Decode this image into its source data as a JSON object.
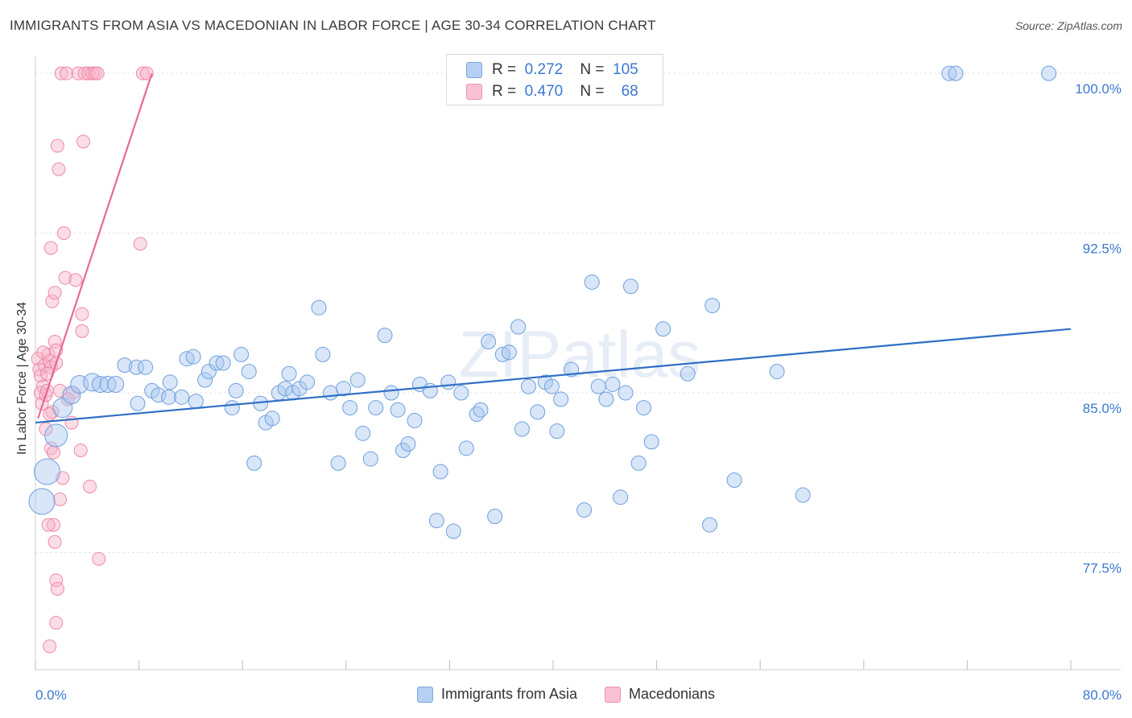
{
  "title": "IMMIGRANTS FROM ASIA VS MACEDONIAN IN LABOR FORCE | AGE 30-34 CORRELATION CHART",
  "source": "Source: ZipAtlas.com",
  "watermark": "ZIPatlas",
  "legend_stats": [
    {
      "r_label": "R =",
      "r_value": "0.272",
      "n_label": "N =",
      "n_value": "105"
    },
    {
      "r_label": "R =",
      "r_value": "0.470",
      "n_label": "N =",
      "n_value": "68"
    }
  ],
  "chart_data": {
    "type": "scatter",
    "title": "IMMIGRANTS FROM ASIA VS MACEDONIAN IN LABOR FORCE | AGE 30-34 CORRELATION CHART",
    "xlabel": "",
    "ylabel": "In Labor Force | Age 30-34",
    "xlim": [
      0,
      80
    ],
    "ylim": [
      72,
      100.8
    ],
    "x_tick_labels": [
      "0.0%",
      "80.0%"
    ],
    "y_ticks": [
      77.5,
      85.0,
      92.5,
      100.0
    ],
    "y_tick_labels": [
      "77.5%",
      "85.0%",
      "92.5%",
      "100.0%"
    ],
    "grid": true,
    "legend_position": "top-center",
    "series": [
      {
        "name": "Immigrants from Asia",
        "color": "#a9c8f0",
        "edge_color": "#6f9fdc",
        "trend_color": "#2f6fc6",
        "trend": {
          "x": [
            0,
            80
          ],
          "y": [
            83.6,
            88.0
          ]
        },
        "points": [
          [
            0.5,
            79.9,
            16
          ],
          [
            0.9,
            81.3,
            16
          ],
          [
            1.6,
            83.0,
            14
          ],
          [
            2.1,
            84.3,
            12
          ],
          [
            2.8,
            84.9,
            11
          ],
          [
            3.4,
            85.4,
            11
          ],
          [
            4.4,
            85.5,
            11
          ],
          [
            5.0,
            85.4,
            10
          ],
          [
            5.6,
            85.4,
            10
          ],
          [
            6.2,
            85.4,
            10
          ],
          [
            6.9,
            86.3,
            9
          ],
          [
            7.8,
            86.2,
            9
          ],
          [
            8.5,
            86.2,
            9
          ],
          [
            7.9,
            84.5,
            9
          ],
          [
            9.0,
            85.1,
            9
          ],
          [
            9.5,
            84.9,
            9
          ],
          [
            10.3,
            84.8,
            9
          ],
          [
            10.4,
            85.5,
            9
          ],
          [
            11.3,
            84.8,
            9
          ],
          [
            11.7,
            86.6,
            9
          ],
          [
            12.2,
            86.7,
            9
          ],
          [
            12.4,
            84.6,
            9
          ],
          [
            13.1,
            85.6,
            9
          ],
          [
            13.4,
            86.0,
            9
          ],
          [
            14.0,
            86.4,
            9
          ],
          [
            14.5,
            86.4,
            9
          ],
          [
            15.2,
            84.3,
            9
          ],
          [
            15.5,
            85.1,
            9
          ],
          [
            15.9,
            86.8,
            9
          ],
          [
            16.5,
            86.0,
            9
          ],
          [
            16.9,
            81.7,
            9
          ],
          [
            17.4,
            84.5,
            9
          ],
          [
            17.8,
            83.6,
            9
          ],
          [
            18.3,
            83.8,
            9
          ],
          [
            18.8,
            85.0,
            9
          ],
          [
            19.3,
            85.2,
            9
          ],
          [
            19.6,
            85.9,
            9
          ],
          [
            19.9,
            85.0,
            9
          ],
          [
            20.4,
            85.2,
            9
          ],
          [
            21.0,
            85.5,
            9
          ],
          [
            21.9,
            89.0,
            9
          ],
          [
            22.2,
            86.8,
            9
          ],
          [
            22.8,
            85.0,
            9
          ],
          [
            23.4,
            81.7,
            9
          ],
          [
            23.8,
            85.2,
            9
          ],
          [
            24.3,
            84.3,
            9
          ],
          [
            24.9,
            85.6,
            9
          ],
          [
            25.3,
            83.1,
            9
          ],
          [
            25.9,
            81.9,
            9
          ],
          [
            26.3,
            84.3,
            9
          ],
          [
            27.0,
            87.7,
            9
          ],
          [
            27.5,
            85.0,
            9
          ],
          [
            28.0,
            84.2,
            9
          ],
          [
            28.4,
            82.3,
            9
          ],
          [
            28.8,
            82.6,
            9
          ],
          [
            29.3,
            83.7,
            9
          ],
          [
            29.7,
            85.4,
            9
          ],
          [
            30.5,
            85.1,
            9
          ],
          [
            31.3,
            81.3,
            9
          ],
          [
            31.9,
            85.5,
            9
          ],
          [
            31.0,
            79.0,
            9
          ],
          [
            32.3,
            78.5,
            9
          ],
          [
            32.9,
            85.0,
            9
          ],
          [
            33.3,
            82.4,
            9
          ],
          [
            34.1,
            84.0,
            9
          ],
          [
            34.4,
            84.2,
            9
          ],
          [
            35.0,
            87.4,
            9
          ],
          [
            35.5,
            79.2,
            9
          ],
          [
            36.1,
            86.8,
            9
          ],
          [
            36.6,
            86.9,
            9
          ],
          [
            37.3,
            88.1,
            9
          ],
          [
            37.6,
            83.3,
            9
          ],
          [
            38.1,
            85.3,
            9
          ],
          [
            38.8,
            84.1,
            9
          ],
          [
            39.4,
            85.5,
            9
          ],
          [
            39.9,
            85.3,
            9
          ],
          [
            40.3,
            83.2,
            9
          ],
          [
            40.6,
            84.7,
            9
          ],
          [
            41.4,
            86.1,
            9
          ],
          [
            42.4,
            79.5,
            9
          ],
          [
            43.0,
            90.2,
            9
          ],
          [
            43.5,
            85.3,
            9
          ],
          [
            44.1,
            84.7,
            9
          ],
          [
            44.6,
            85.4,
            9
          ],
          [
            45.2,
            80.1,
            9
          ],
          [
            45.6,
            85.0,
            9
          ],
          [
            46.0,
            90.0,
            9
          ],
          [
            46.6,
            81.7,
            9
          ],
          [
            47.0,
            84.3,
            9
          ],
          [
            47.6,
            82.7,
            9
          ],
          [
            48.5,
            88.0,
            9
          ],
          [
            50.4,
            85.9,
            9
          ],
          [
            52.1,
            78.8,
            9
          ],
          [
            52.3,
            89.1,
            9
          ],
          [
            54.0,
            80.9,
            9
          ],
          [
            57.3,
            86.0,
            9
          ],
          [
            59.3,
            80.2,
            9
          ],
          [
            70.6,
            100.0,
            9
          ],
          [
            71.1,
            100.0,
            9
          ],
          [
            78.3,
            100.0,
            9
          ]
        ]
      },
      {
        "name": "Macedonians",
        "color": "#f7b3c8",
        "edge_color": "#ee89a8",
        "trend_color": "#e8689a",
        "trend": {
          "x": [
            0.2,
            9.0
          ],
          "y": [
            83.8,
            100.0
          ]
        },
        "points": [
          [
            0.2,
            86.6,
            8
          ],
          [
            0.3,
            86.1,
            8
          ],
          [
            0.4,
            85.8,
            8
          ],
          [
            0.5,
            84.5,
            8
          ],
          [
            0.6,
            85.3,
            8
          ],
          [
            0.7,
            86.3,
            8
          ],
          [
            0.4,
            85.0,
            8
          ],
          [
            0.8,
            84.9,
            8
          ],
          [
            0.9,
            85.1,
            8
          ],
          [
            1.0,
            86.8,
            8
          ],
          [
            1.1,
            86.5,
            8
          ],
          [
            1.2,
            86.2,
            8
          ],
          [
            1.3,
            84.1,
            8
          ],
          [
            1.2,
            82.4,
            8
          ],
          [
            1.5,
            87.4,
            8
          ],
          [
            1.6,
            87.0,
            8
          ],
          [
            1.6,
            86.4,
            8
          ],
          [
            1.4,
            82.2,
            8
          ],
          [
            1.3,
            89.3,
            8
          ],
          [
            1.5,
            89.7,
            8
          ],
          [
            1.2,
            91.8,
            8
          ],
          [
            1.7,
            96.6,
            8
          ],
          [
            1.8,
            95.5,
            8
          ],
          [
            2.2,
            92.5,
            8
          ],
          [
            2.3,
            90.4,
            8
          ],
          [
            2.0,
            100.0,
            8
          ],
          [
            2.4,
            100.0,
            8
          ],
          [
            2.1,
            81.0,
            8
          ],
          [
            1.9,
            80.0,
            8
          ],
          [
            1.4,
            78.8,
            8
          ],
          [
            1.5,
            78.0,
            8
          ],
          [
            1.6,
            76.2,
            8
          ],
          [
            1.7,
            75.8,
            8
          ],
          [
            1.6,
            74.2,
            8
          ],
          [
            1.1,
            73.1,
            8
          ],
          [
            2.9,
            85.0,
            8
          ],
          [
            2.8,
            83.6,
            8
          ],
          [
            3.1,
            90.3,
            8
          ],
          [
            3.6,
            88.7,
            8
          ],
          [
            3.6,
            87.9,
            8
          ],
          [
            3.7,
            96.8,
            8
          ],
          [
            3.5,
            82.3,
            8
          ],
          [
            4.2,
            80.6,
            8
          ],
          [
            4.9,
            77.2,
            8
          ],
          [
            3.3,
            100.0,
            8
          ],
          [
            3.8,
            100.0,
            8
          ],
          [
            4.1,
            100.0,
            8
          ],
          [
            4.4,
            100.0,
            8
          ],
          [
            4.6,
            100.0,
            8
          ],
          [
            4.8,
            100.0,
            8
          ],
          [
            8.1,
            92.0,
            8
          ],
          [
            8.3,
            100.0,
            8
          ],
          [
            8.6,
            100.0,
            8
          ],
          [
            0.9,
            85.9,
            8
          ],
          [
            1.1,
            84.0,
            8
          ],
          [
            0.6,
            86.9,
            8
          ],
          [
            1.9,
            85.1,
            8
          ],
          [
            2.5,
            84.7,
            8
          ],
          [
            0.8,
            83.3,
            8
          ],
          [
            1.0,
            78.8,
            8
          ]
        ]
      }
    ]
  }
}
